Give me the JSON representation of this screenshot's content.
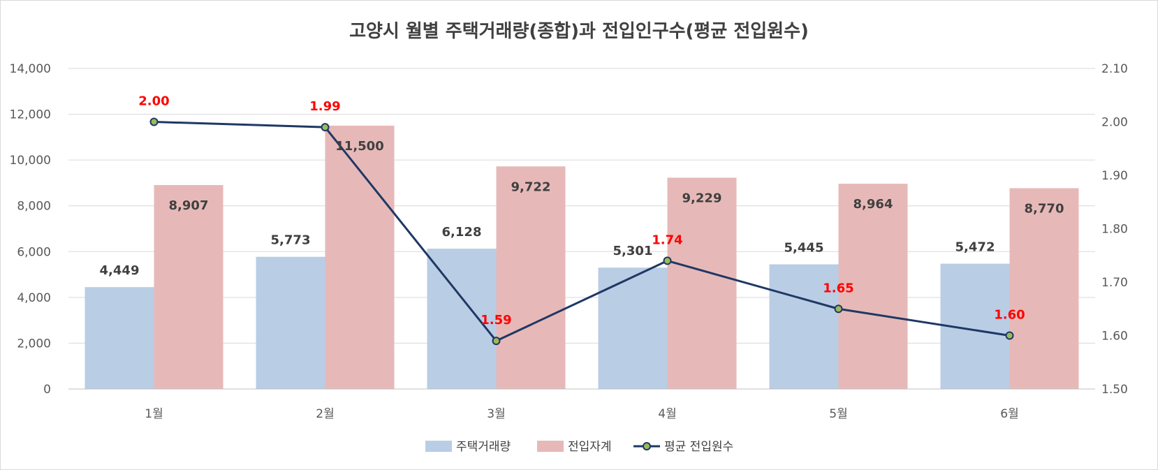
{
  "chart_data": {
    "type": "bar",
    "title": "고양시 월별 주택거래량(종합)과 전입인구수(평균 전입원수)",
    "categories": [
      "1월",
      "2월",
      "3월",
      "4월",
      "5월",
      "6월"
    ],
    "series": [
      {
        "name": "주택거래량",
        "type": "bar",
        "axis": "left",
        "color": "#b9cde5",
        "values": [
          4449,
          5773,
          6128,
          5301,
          5445,
          5472
        ],
        "labels": [
          "4,449",
          "5,773",
          "6,128",
          "5,301",
          "5,445",
          "5,472"
        ]
      },
      {
        "name": "전입자계",
        "type": "bar",
        "axis": "left",
        "color": "#e6b9b8",
        "values": [
          8907,
          11500,
          9722,
          9229,
          8964,
          8770
        ],
        "labels": [
          "8,907",
          "11,500",
          "9,722",
          "9,229",
          "8,964",
          "8,770"
        ]
      },
      {
        "name": "평균 전입원수",
        "type": "line",
        "axis": "right",
        "color": "#1f3864",
        "marker_fill": "#9bbb59",
        "label_color": "#ff0000",
        "values": [
          2.0,
          1.99,
          1.59,
          1.74,
          1.65,
          1.6
        ],
        "labels": [
          "2.00",
          "1.99",
          "1.59",
          "1.74",
          "1.65",
          "1.60"
        ]
      }
    ],
    "y_left": {
      "range": [
        0,
        14000
      ],
      "ticks": [
        0,
        2000,
        4000,
        6000,
        8000,
        10000,
        12000,
        14000
      ],
      "tick_labels": [
        "0",
        "2,000",
        "4,000",
        "6,000",
        "8,000",
        "10,000",
        "12,000",
        "14,000"
      ]
    },
    "y_right": {
      "range": [
        1.5,
        2.1
      ],
      "ticks": [
        1.5,
        1.6,
        1.7,
        1.8,
        1.9,
        2.0,
        2.1
      ],
      "tick_labels": [
        "1.50",
        "1.60",
        "1.70",
        "1.80",
        "1.90",
        "2.00",
        "2.10"
      ]
    },
    "grid": true,
    "legend": "bottom"
  }
}
